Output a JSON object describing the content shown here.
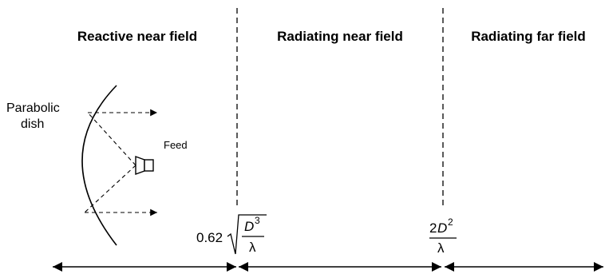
{
  "regions": [
    {
      "label": "Reactive near field"
    },
    {
      "label": "Radiating near field"
    },
    {
      "label": "Radiating far field"
    }
  ],
  "dish_label_line1": "Parabolic",
  "dish_label_line2": "dish",
  "feed_label": "Feed",
  "boundary1": {
    "coefficient": "0.62",
    "numerator_base": "D",
    "numerator_exponent": "3",
    "denominator": "λ"
  },
  "boundary2": {
    "numerator_prefix": "2",
    "numerator_base": "D",
    "numerator_exponent": "2",
    "denominator": "λ"
  }
}
